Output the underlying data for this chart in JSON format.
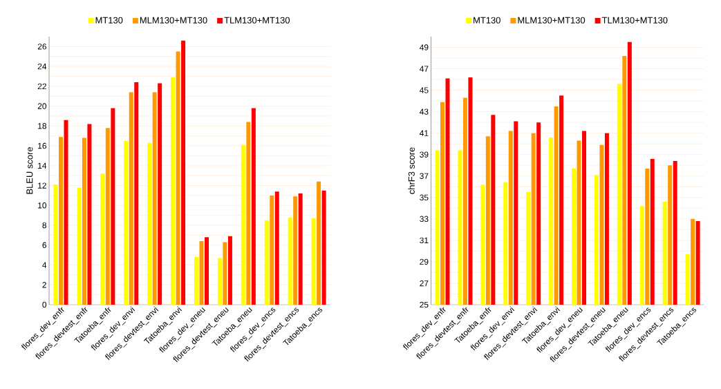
{
  "chart_data": [
    {
      "type": "bar",
      "ylabel": "BLEU score",
      "categories": [
        "flores_dev_enfr",
        "flores_devtest_enfr",
        "Tatoeba_enfr",
        "flores_dev_envi",
        "flores_devtest_envi",
        "Tatoeba_envi",
        "flores_dev_eneu",
        "flores_devtest_eneu",
        "Tatoeba_eneu",
        "flores_dev_encs",
        "flores_devtest_encs",
        "Tatoeba_encs"
      ],
      "series": [
        {
          "name": "MT130",
          "color": "#ffff00",
          "values": [
            12.1,
            11.8,
            13.2,
            16.5,
            16.3,
            22.9,
            4.8,
            4.7,
            16.1,
            8.5,
            8.8,
            8.7
          ]
        },
        {
          "name": "MLM130+MT130",
          "color": "#ff9900",
          "values": [
            16.9,
            16.8,
            17.8,
            21.4,
            21.4,
            25.5,
            6.4,
            6.3,
            18.4,
            11.0,
            10.9,
            12.4
          ]
        },
        {
          "name": "TLM130+MT130",
          "color": "#ff0000",
          "values": [
            18.6,
            18.2,
            19.8,
            22.4,
            22.3,
            26.6,
            6.8,
            6.9,
            19.8,
            11.4,
            11.2,
            11.5
          ]
        }
      ],
      "ylim": [
        0,
        27
      ],
      "yticks": [
        0,
        2,
        4,
        6,
        8,
        10,
        12,
        14,
        16,
        18,
        20,
        22,
        24,
        26
      ],
      "grid": "y",
      "legend": "top"
    },
    {
      "type": "bar",
      "ylabel": "chrF3 score",
      "categories": [
        "flores_dev_enfr",
        "flores_devtest_enfr",
        "Tatoeba_enfr",
        "flores_dev_envi",
        "flores_devtest_envi",
        "Tatoeba_envi",
        "flores_dev_eneu",
        "flores_devtest_eneu",
        "Tatoeba_eneu",
        "flores_dev_encs",
        "flores_devtest_encs",
        "Tatoeba_encs"
      ],
      "series": [
        {
          "name": "MT130",
          "color": "#ffff00",
          "values": [
            39.4,
            39.4,
            36.2,
            36.4,
            35.5,
            40.6,
            37.7,
            37.1,
            45.6,
            34.2,
            34.6,
            29.7
          ]
        },
        {
          "name": "MLM130+MT130",
          "color": "#ff9900",
          "values": [
            43.9,
            44.3,
            40.7,
            41.2,
            41.0,
            43.5,
            40.3,
            39.9,
            48.2,
            37.7,
            38.0,
            33.0
          ]
        },
        {
          "name": "TLM130+MT130",
          "color": "#ff0000",
          "values": [
            46.1,
            46.2,
            42.7,
            42.1,
            42.0,
            44.5,
            41.2,
            41.0,
            49.5,
            38.6,
            38.4,
            32.8
          ]
        }
      ],
      "ylim": [
        25,
        50
      ],
      "yticks": [
        25,
        27,
        29,
        31,
        33,
        35,
        37,
        39,
        41,
        43,
        45,
        47,
        49
      ],
      "grid": "y",
      "legend": "top"
    }
  ]
}
